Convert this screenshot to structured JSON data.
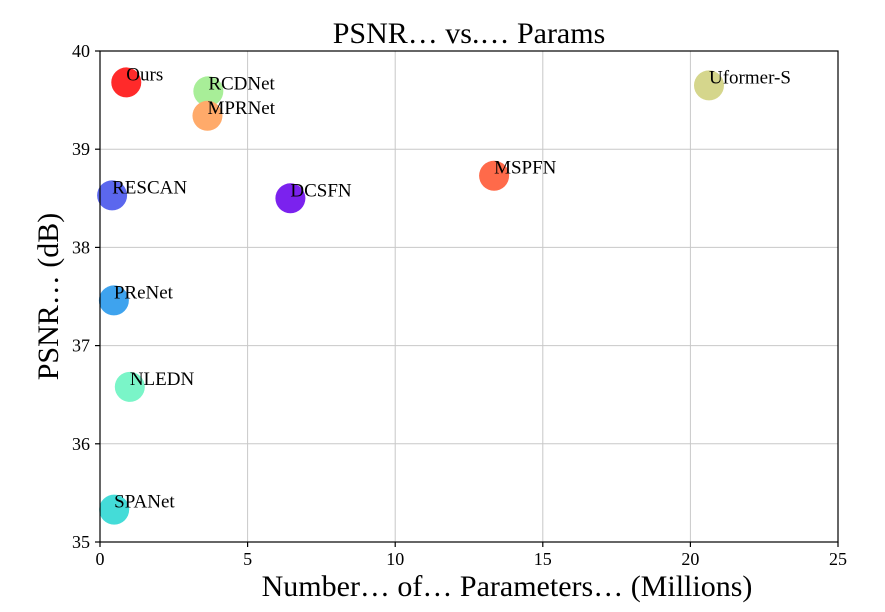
{
  "chart_data": {
    "type": "scatter",
    "title": "PSNR… vs.… Params",
    "xlabel": "Number… of… Parameters… (Millions)",
    "ylabel": "PSNR… (dB)",
    "xlim": [
      0,
      25
    ],
    "ylim": [
      35,
      40
    ],
    "xticks": [
      0,
      5,
      10,
      15,
      20,
      25
    ],
    "yticks": [
      35,
      36,
      37,
      38,
      39,
      40
    ],
    "grid": true,
    "points": [
      {
        "label": "Ours",
        "x": 0.89,
        "y": 39.68,
        "color": "#ff2a2a"
      },
      {
        "label": "RCDNet",
        "x": 3.67,
        "y": 39.59,
        "color": "#a8ee98"
      },
      {
        "label": "MPRNet",
        "x": 3.64,
        "y": 39.34,
        "color": "#ffaa6a"
      },
      {
        "label": "Uformer-S",
        "x": 20.63,
        "y": 39.65,
        "color": "#d5d68c"
      },
      {
        "label": "RESCAN",
        "x": 0.41,
        "y": 38.53,
        "color": "#5b67ee"
      },
      {
        "label": "DCSFN",
        "x": 6.45,
        "y": 38.5,
        "color": "#7b22ee"
      },
      {
        "label": "MSPFN",
        "x": 13.35,
        "y": 38.73,
        "color": "#ff6a4a"
      },
      {
        "label": "PReNet",
        "x": 0.47,
        "y": 37.46,
        "color": "#3ea3ee"
      },
      {
        "label": "NLEDN",
        "x": 1.01,
        "y": 36.58,
        "color": "#7af5c8"
      },
      {
        "label": "SPANet",
        "x": 0.48,
        "y": 35.33,
        "color": "#44dcd8"
      }
    ]
  }
}
